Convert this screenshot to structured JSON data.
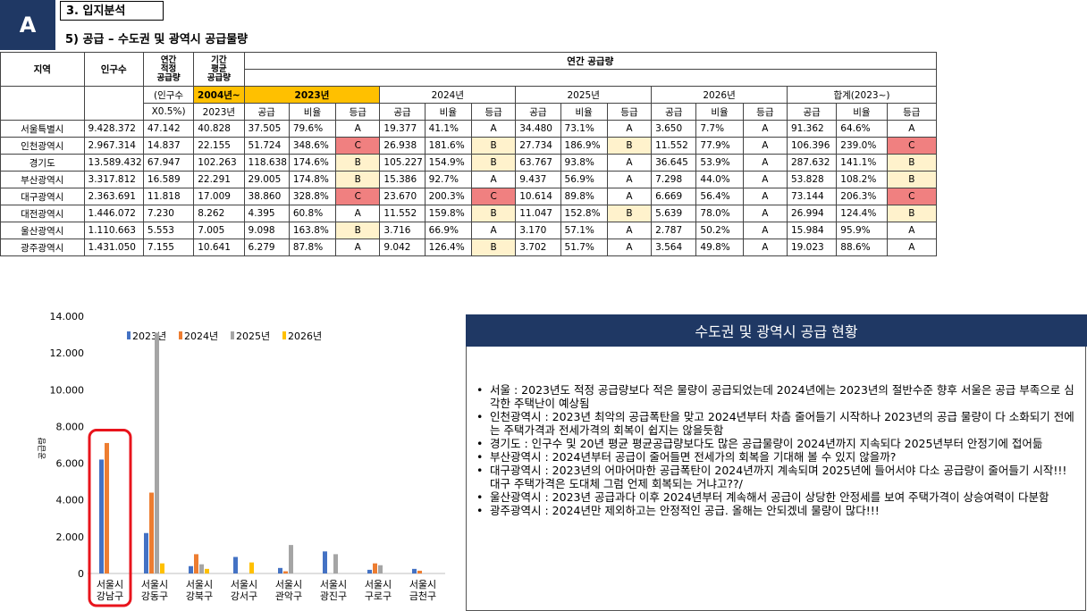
{
  "badge": "A",
  "section": "3. 입지분석",
  "subtitle": "5) 공급 – 수도권 및 광역시 공급물량",
  "table": {
    "h_region": "지역",
    "h_pop": "인구수",
    "h_adequate": "연간\n적정\n공급량",
    "h_adequate_sub1": "(인구수",
    "h_adequate_sub2": "X0.5%)",
    "h_period": "기간\n평균\n공급량",
    "h_period_sub1": "2004년~",
    "h_period_sub2": "2023년",
    "h_annual": "연간 공급량",
    "years": [
      "2023년",
      "2024년",
      "2025년",
      "2026년",
      "합계(2023~)"
    ],
    "sub_cols": [
      "공급",
      "비율",
      "등급"
    ],
    "rows": [
      {
        "region": "서울특별시",
        "pop": "9.428.372",
        "adequate": "47.142",
        "period": "40.828",
        "cells": [
          [
            "37.505",
            "79.6%",
            "A"
          ],
          [
            "19.377",
            "41.1%",
            "A"
          ],
          [
            "34.480",
            "73.1%",
            "A"
          ],
          [
            "3.650",
            "7.7%",
            "A"
          ],
          [
            "91.362",
            "64.6%",
            "A"
          ]
        ]
      },
      {
        "region": "인천광역시",
        "pop": "2.967.314",
        "adequate": "14.837",
        "period": "22.155",
        "cells": [
          [
            "51.724",
            "348.6%",
            "C"
          ],
          [
            "26.938",
            "181.6%",
            "B"
          ],
          [
            "27.734",
            "186.9%",
            "B"
          ],
          [
            "11.552",
            "77.9%",
            "A"
          ],
          [
            "106.396",
            "239.0%",
            "C"
          ]
        ]
      },
      {
        "region": "경기도",
        "pop": "13.589.432",
        "adequate": "67.947",
        "period": "102.263",
        "cells": [
          [
            "118.638",
            "174.6%",
            "B"
          ],
          [
            "105.227",
            "154.9%",
            "B"
          ],
          [
            "63.767",
            "93.8%",
            "A"
          ],
          [
            "36.645",
            "53.9%",
            "A"
          ],
          [
            "287.632",
            "141.1%",
            "B"
          ]
        ]
      },
      {
        "region": "부산광역시",
        "pop": "3.317.812",
        "adequate": "16.589",
        "period": "22.291",
        "cells": [
          [
            "29.005",
            "174.8%",
            "B"
          ],
          [
            "15.386",
            "92.7%",
            "A"
          ],
          [
            "9.437",
            "56.9%",
            "A"
          ],
          [
            "7.298",
            "44.0%",
            "A"
          ],
          [
            "53.828",
            "108.2%",
            "B"
          ]
        ]
      },
      {
        "region": "대구광역시",
        "pop": "2.363.691",
        "adequate": "11.818",
        "period": "17.009",
        "cells": [
          [
            "38.860",
            "328.8%",
            "C"
          ],
          [
            "23.670",
            "200.3%",
            "C"
          ],
          [
            "10.614",
            "89.8%",
            "A"
          ],
          [
            "6.669",
            "56.4%",
            "A"
          ],
          [
            "73.144",
            "206.3%",
            "C"
          ]
        ]
      },
      {
        "region": "대전광역시",
        "pop": "1.446.072",
        "adequate": "7.230",
        "period": "8.262",
        "cells": [
          [
            "4.395",
            "60.8%",
            "A"
          ],
          [
            "11.552",
            "159.8%",
            "B"
          ],
          [
            "11.047",
            "152.8%",
            "B"
          ],
          [
            "5.639",
            "78.0%",
            "A"
          ],
          [
            "26.994",
            "124.4%",
            "B"
          ]
        ]
      },
      {
        "region": "울산광역시",
        "pop": "1.110.663",
        "adequate": "5.553",
        "period": "7.005",
        "cells": [
          [
            "9.098",
            "163.8%",
            "B"
          ],
          [
            "3.716",
            "66.9%",
            "A"
          ],
          [
            "3.170",
            "57.1%",
            "A"
          ],
          [
            "2.787",
            "50.2%",
            "A"
          ],
          [
            "15.984",
            "95.9%",
            "A"
          ]
        ]
      },
      {
        "region": "광주광역시",
        "pop": "1.431.050",
        "adequate": "7.155",
        "period": "10.641",
        "cells": [
          [
            "6.279",
            "87.8%",
            "A"
          ],
          [
            "9.042",
            "126.4%",
            "B"
          ],
          [
            "3.702",
            "51.7%",
            "A"
          ],
          [
            "3.564",
            "49.8%",
            "A"
          ],
          [
            "19.023",
            "88.6%",
            "A"
          ]
        ]
      }
    ]
  },
  "chart_data": {
    "type": "bar",
    "ylabel": "공급량",
    "ylim": [
      0,
      14000
    ],
    "yticks": [
      "0",
      "2.000",
      "4.000",
      "6.000",
      "8.000",
      "10.000",
      "12.000",
      "14.000"
    ],
    "categories": [
      [
        "서울시",
        "강남구"
      ],
      [
        "서울시",
        "강동구"
      ],
      [
        "서울시",
        "강북구"
      ],
      [
        "서울시",
        "강서구"
      ],
      [
        "서울시",
        "관악구"
      ],
      [
        "서울시",
        "광진구"
      ],
      [
        "서울시",
        "구로구"
      ],
      [
        "서울시",
        "금천구"
      ]
    ],
    "series": [
      {
        "name": "2023년",
        "color": "#4472c4",
        "values": [
          6200,
          2200,
          400,
          900,
          300,
          1200,
          200,
          250
        ]
      },
      {
        "name": "2024년",
        "color": "#ed7d31",
        "values": [
          7100,
          4400,
          1050,
          0,
          120,
          0,
          550,
          150
        ]
      },
      {
        "name": "2025년",
        "color": "#a5a5a5",
        "values": [
          0,
          13100,
          500,
          0,
          1550,
          1050,
          450,
          0
        ]
      },
      {
        "name": "2026년",
        "color": "#ffc000",
        "values": [
          0,
          550,
          250,
          600,
          0,
          0,
          0,
          0
        ]
      }
    ],
    "highlight_index": 0,
    "highlight_color": "#e8141c"
  },
  "panel": {
    "title": "수도권 및 광역시 공급 현황",
    "bullet": "•",
    "notes": [
      "서울 : 2023년도 적정 공급량보다 적은 물량이 공급되었는데 2024년에는 2023년의 절반수준 향후 서울은 공급 부족으로 심각한 주택난이 예상됨",
      "인천광역시 : 2023년 최악의 공급폭탄을 맞고 2024년부터 차츰 줄어들기 시작하나 2023년의 공급 물량이 다 소화되기 전에는 주택가격과 전세가격의 회복이 쉽지는 않을듯함",
      "경기도 : 인구수 및 20년 평균 평균공급량보다도 많은 공급물량이 2024년까지 지속되다 2025년부터 안정기에 접어듦",
      "부산광역시 : 2024년부터 공급이 줄어들면 전세가의 회복을 기대해 볼 수 있지 않을까?",
      "대구광역시 : 2023년의 어마어마한 공급폭탄이 2024년까지 계속되며 2025년에 들어서야 다소 공급량이 줄어들기 시작!!! 대구 주택가격은 도대체 그럼 언제 회복되는 거냐고??/",
      "울산광역시 : 2023년 공급과다 이후 2024년부터 계속해서 공급이 상당한 안정세를 보여 주택가격이 상승여력이 다분함",
      "광주광역시 : 2024년만 제외하고는 안정적인 공급. 올해는 안되겠네 물량이 많다!!!"
    ]
  }
}
